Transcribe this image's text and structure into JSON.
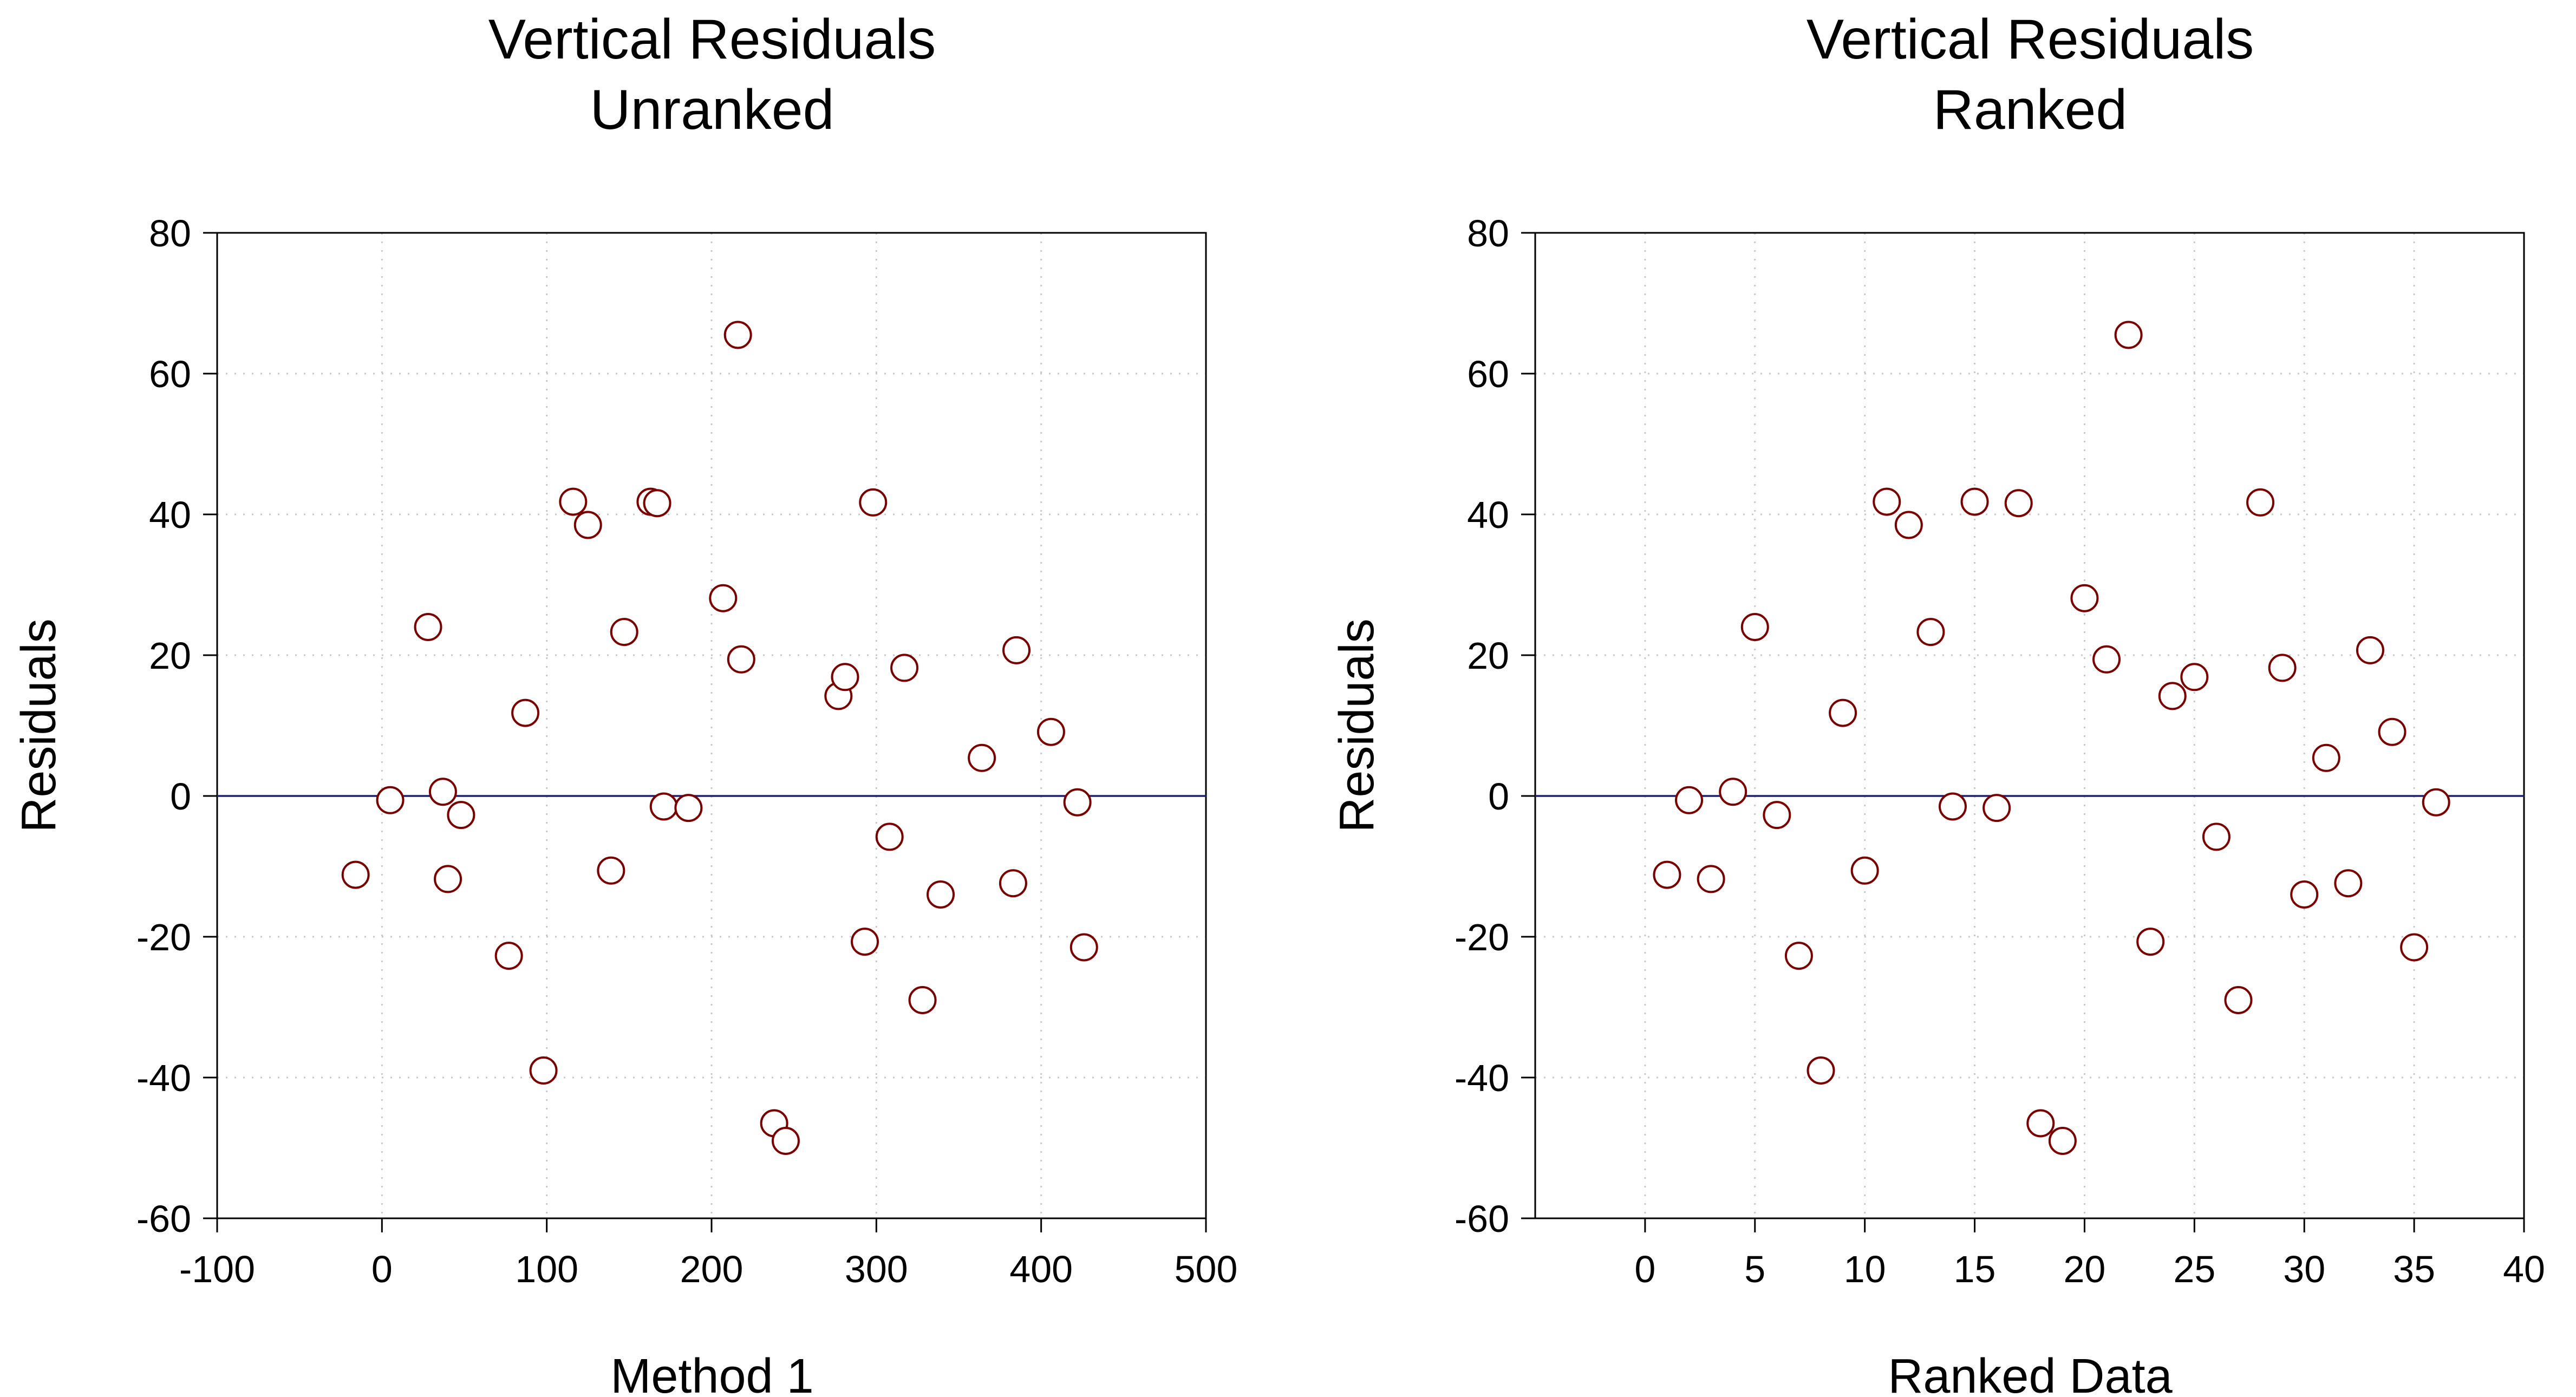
{
  "colors": {
    "point_stroke": "#7a0000",
    "zero_line": "#1c1c7a"
  },
  "chart_data": [
    {
      "type": "scatter",
      "title": "Vertical Residuals",
      "subtitle": "Unranked",
      "xlabel": "Method 1",
      "ylabel": "Residuals",
      "xlim": [
        -100,
        500
      ],
      "ylim": [
        -60,
        80
      ],
      "xticks": [
        -100,
        0,
        100,
        200,
        300,
        400,
        500
      ],
      "yticks": [
        -60,
        -40,
        -20,
        0,
        20,
        40,
        60,
        80
      ],
      "grid": true,
      "reference_line_y": 0,
      "points": [
        {
          "x": -16,
          "y": -11.2
        },
        {
          "x": 5,
          "y": -0.6
        },
        {
          "x": 28,
          "y": 24
        },
        {
          "x": 37,
          "y": 0.6
        },
        {
          "x": 40,
          "y": -11.8
        },
        {
          "x": 48,
          "y": -2.7
        },
        {
          "x": 77,
          "y": -22.7
        },
        {
          "x": 87,
          "y": 11.8
        },
        {
          "x": 98,
          "y": -39
        },
        {
          "x": 116,
          "y": 41.8
        },
        {
          "x": 125,
          "y": 38.5
        },
        {
          "x": 139,
          "y": -10.6
        },
        {
          "x": 147,
          "y": 23.3
        },
        {
          "x": 163,
          "y": 41.8
        },
        {
          "x": 167,
          "y": 41.6
        },
        {
          "x": 171,
          "y": -1.5
        },
        {
          "x": 186,
          "y": -1.7
        },
        {
          "x": 207,
          "y": 28.1
        },
        {
          "x": 216,
          "y": 65.5
        },
        {
          "x": 218,
          "y": 19.4
        },
        {
          "x": 238,
          "y": -46.5
        },
        {
          "x": 245,
          "y": -49
        },
        {
          "x": 277,
          "y": 14.2
        },
        {
          "x": 281,
          "y": 16.9
        },
        {
          "x": 293,
          "y": -20.7
        },
        {
          "x": 298,
          "y": 41.7
        },
        {
          "x": 308,
          "y": -5.8
        },
        {
          "x": 317,
          "y": 18.2
        },
        {
          "x": 328,
          "y": -29
        },
        {
          "x": 339,
          "y": -14
        },
        {
          "x": 364,
          "y": 5.4
        },
        {
          "x": 383,
          "y": -12.4
        },
        {
          "x": 385,
          "y": 20.7
        },
        {
          "x": 406,
          "y": 9.1
        },
        {
          "x": 422,
          "y": -0.9
        },
        {
          "x": 426,
          "y": -21.5
        }
      ]
    },
    {
      "type": "scatter",
      "title": "Vertical Residuals",
      "subtitle": "Ranked",
      "xlabel": "Ranked Data",
      "ylabel": "Residuals",
      "xlim": [
        -5,
        40
      ],
      "ylim": [
        -60,
        80
      ],
      "xticks": [
        0,
        5,
        10,
        15,
        20,
        25,
        30,
        35,
        40
      ],
      "yticks": [
        -60,
        -40,
        -20,
        0,
        20,
        40,
        60,
        80
      ],
      "grid": true,
      "reference_line_y": 0,
      "points": [
        {
          "x": 1,
          "y": -11.2
        },
        {
          "x": 2,
          "y": -0.6
        },
        {
          "x": 3,
          "y": -11.8
        },
        {
          "x": 4,
          "y": 0.6
        },
        {
          "x": 5,
          "y": 24
        },
        {
          "x": 6,
          "y": -2.7
        },
        {
          "x": 7,
          "y": -22.7
        },
        {
          "x": 8,
          "y": -39
        },
        {
          "x": 9,
          "y": 11.8
        },
        {
          "x": 10,
          "y": -10.6
        },
        {
          "x": 11,
          "y": 41.8
        },
        {
          "x": 12,
          "y": 38.5
        },
        {
          "x": 13,
          "y": 23.3
        },
        {
          "x": 14,
          "y": -1.5
        },
        {
          "x": 15,
          "y": 41.8
        },
        {
          "x": 16,
          "y": -1.7
        },
        {
          "x": 17,
          "y": 41.6
        },
        {
          "x": 18,
          "y": -46.5
        },
        {
          "x": 19,
          "y": -49
        },
        {
          "x": 20,
          "y": 28.1
        },
        {
          "x": 21,
          "y": 19.4
        },
        {
          "x": 22,
          "y": 65.5
        },
        {
          "x": 23,
          "y": -20.7
        },
        {
          "x": 24,
          "y": 14.2
        },
        {
          "x": 25,
          "y": 16.9
        },
        {
          "x": 26,
          "y": -5.8
        },
        {
          "x": 27,
          "y": -29
        },
        {
          "x": 28,
          "y": 41.7
        },
        {
          "x": 29,
          "y": 18.2
        },
        {
          "x": 30,
          "y": -14
        },
        {
          "x": 31,
          "y": 5.4
        },
        {
          "x": 32,
          "y": -12.4
        },
        {
          "x": 33,
          "y": 20.7
        },
        {
          "x": 34,
          "y": 9.1
        },
        {
          "x": 35,
          "y": -21.5
        },
        {
          "x": 36,
          "y": -0.9
        }
      ]
    }
  ]
}
